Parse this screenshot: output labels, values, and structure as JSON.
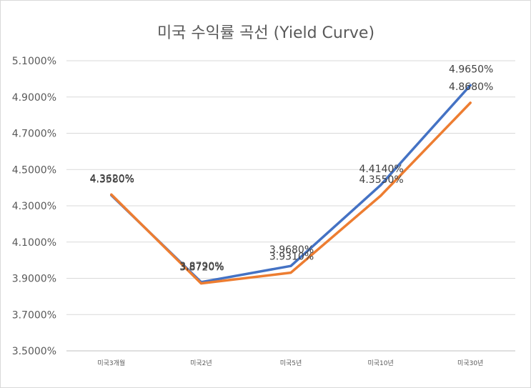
{
  "chart_data": {
    "type": "line",
    "title": "미국 수익률 곡선 (Yield Curve)",
    "xlabel": "",
    "ylabel": "",
    "categories": [
      "미국3개월",
      "미국2년",
      "미국5년",
      "미국10년",
      "미국30년"
    ],
    "series": [
      {
        "color": "#4472C4",
        "values": [
          4.358,
          3.879,
          3.968,
          4.414,
          4.965
        ],
        "labels": [
          "4.3580%",
          "3.8790%",
          "3.9680%",
          "4.4140%",
          "4.9650%"
        ]
      },
      {
        "color": "#ED7D31",
        "values": [
          4.362,
          3.872,
          3.931,
          4.355,
          4.868
        ],
        "labels": [
          "4.3620%",
          "3.8720%",
          "3.9310%",
          "4.3550%",
          "4.8680%"
        ]
      }
    ],
    "ylim": [
      3.5,
      5.1
    ],
    "yticks": [
      3.5,
      3.7,
      3.9,
      4.1,
      4.3,
      4.5,
      4.7,
      4.9,
      5.1
    ],
    "ytick_labels": [
      "3.5000%",
      "3.7000%",
      "3.9000%",
      "4.1000%",
      "4.3000%",
      "4.5000%",
      "4.7000%",
      "4.9000%",
      "5.1000%"
    ],
    "grid": true,
    "legend": "none"
  }
}
